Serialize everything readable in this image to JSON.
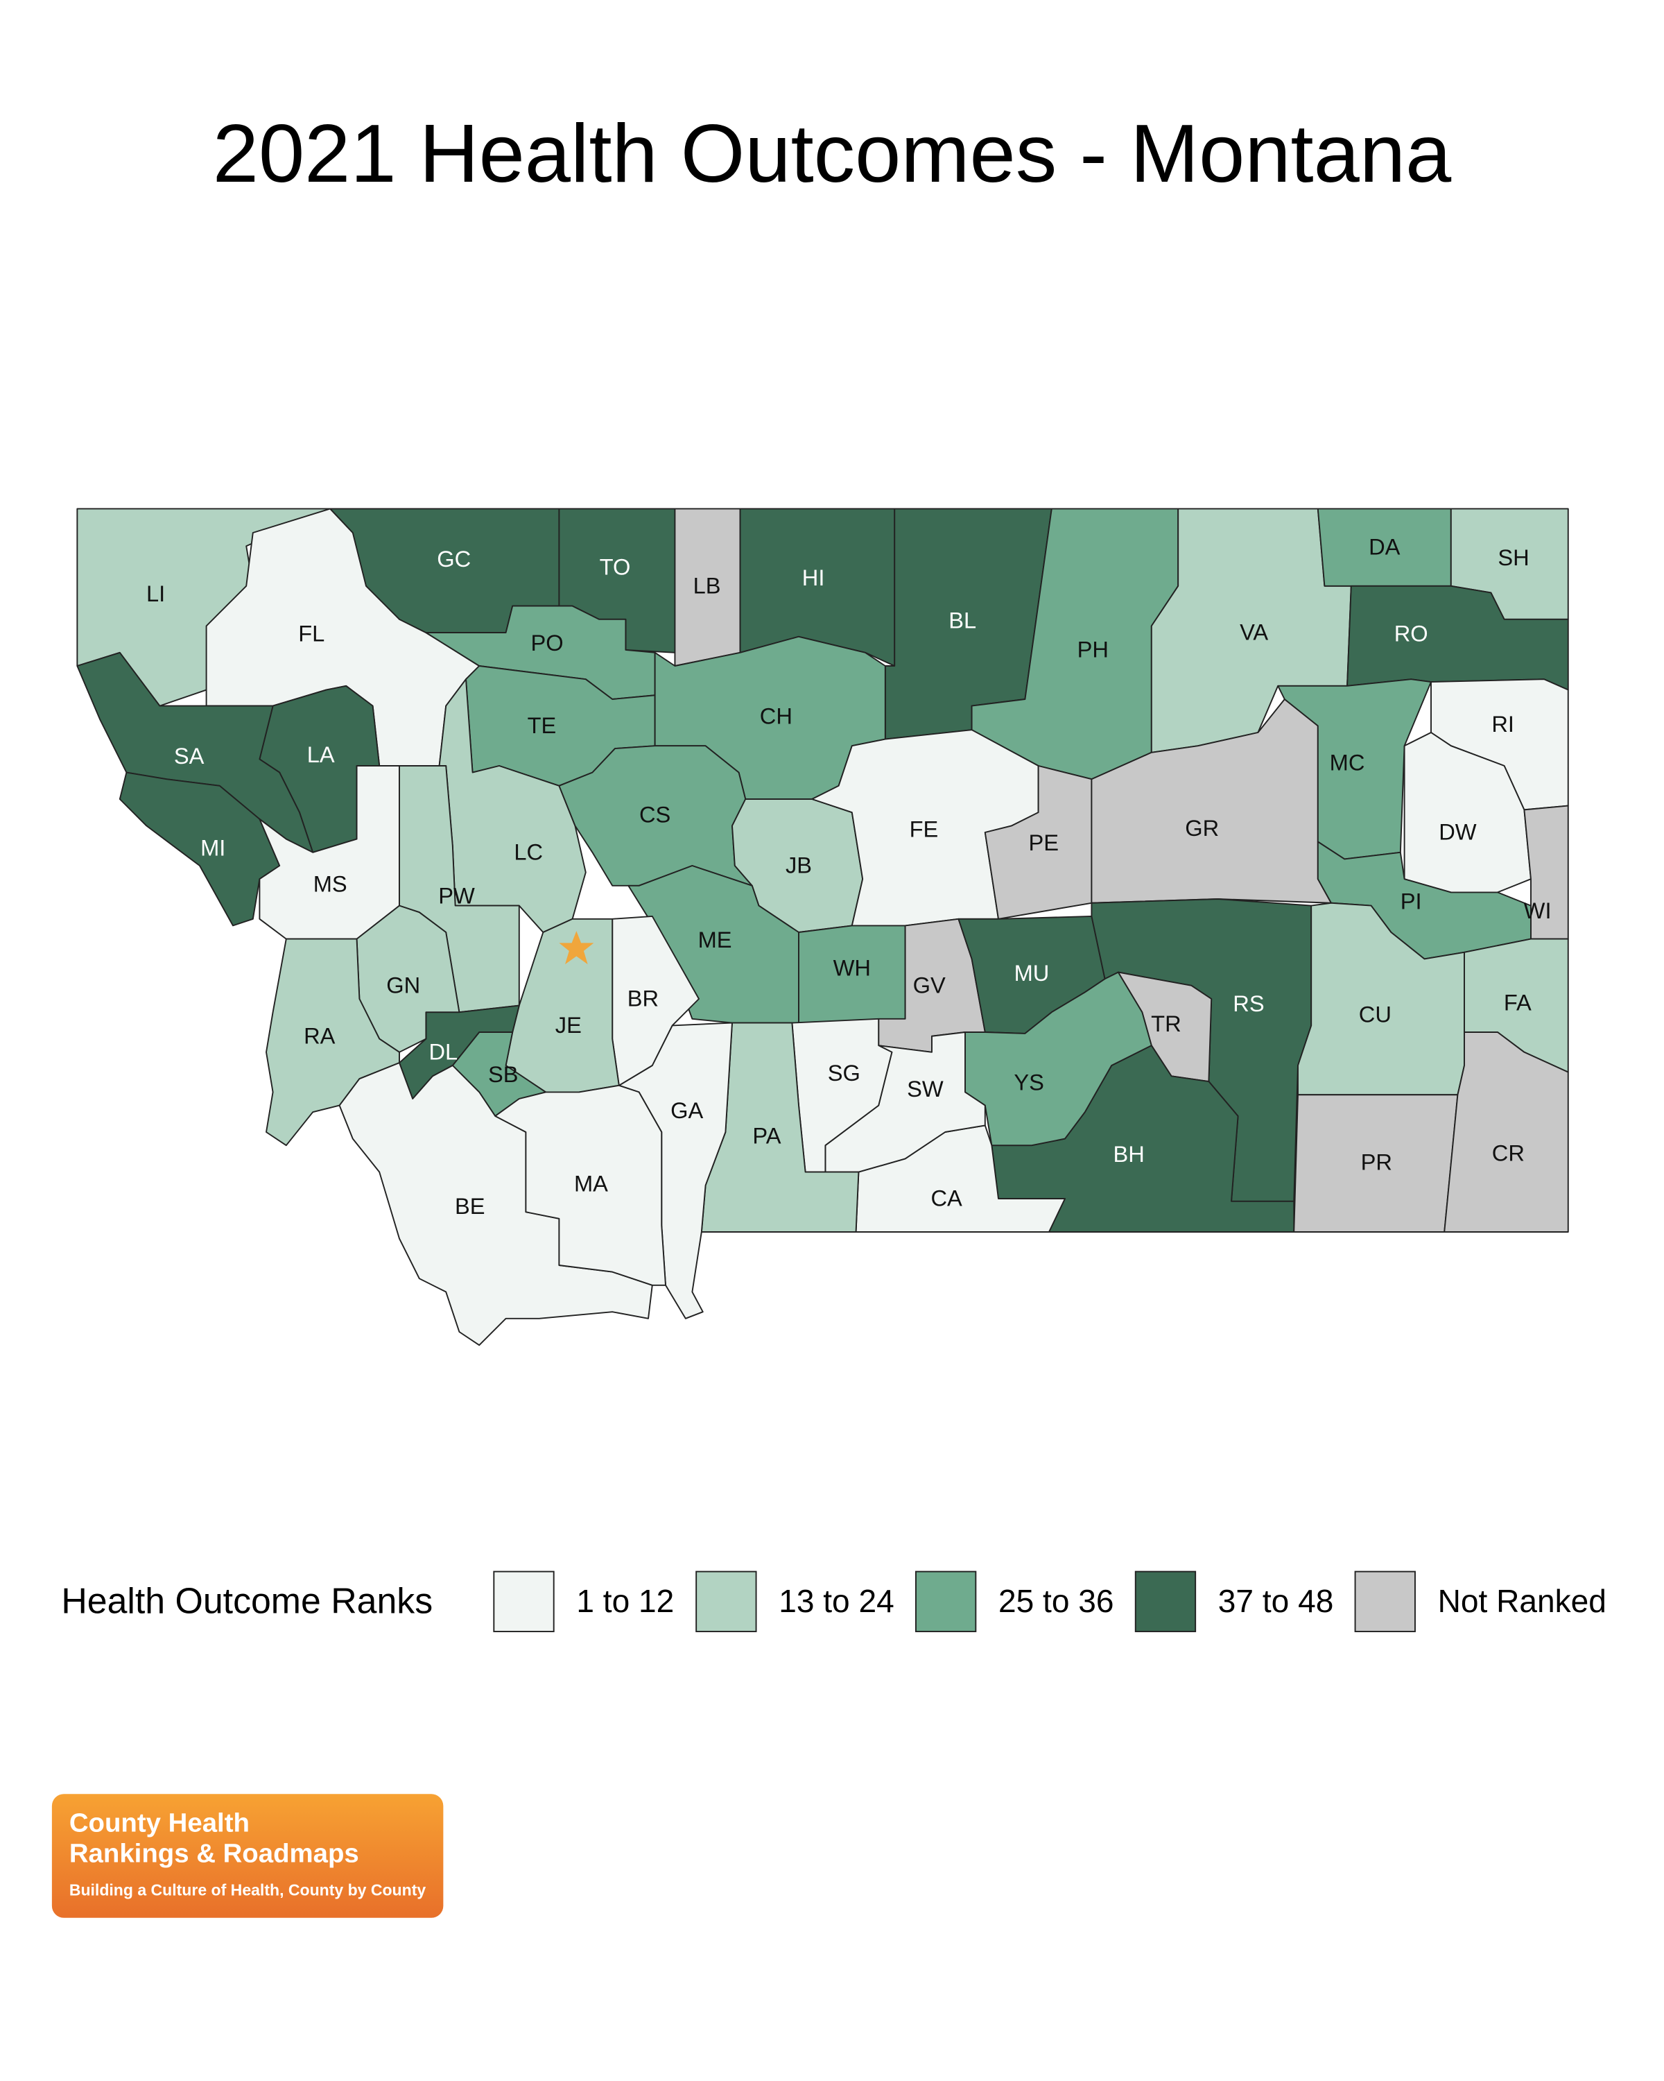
{
  "title": "2021 Health Outcomes - Montana",
  "legend": {
    "title": "Health Outcome Ranks",
    "items": [
      {
        "label": "1 to 12",
        "color": "#f1f5f3"
      },
      {
        "label": "13 to 24",
        "color": "#b2d3c2"
      },
      {
        "label": "25 to 36",
        "color": "#6fab8e"
      },
      {
        "label": "37 to 48",
        "color": "#3b6a53"
      },
      {
        "label": "Not Ranked",
        "color": "#c8c8c8"
      }
    ]
  },
  "map": {
    "counties": [
      {
        "abbr": "LI",
        "rank": "13 to 24"
      },
      {
        "abbr": "FL",
        "rank": "1 to 12"
      },
      {
        "abbr": "GC",
        "rank": "37 to 48"
      },
      {
        "abbr": "TO",
        "rank": "37 to 48"
      },
      {
        "abbr": "LB",
        "rank": "Not Ranked"
      },
      {
        "abbr": "HI",
        "rank": "37 to 48"
      },
      {
        "abbr": "BL",
        "rank": "37 to 48"
      },
      {
        "abbr": "PH",
        "rank": "25 to 36"
      },
      {
        "abbr": "VA",
        "rank": "13 to 24"
      },
      {
        "abbr": "DA",
        "rank": "25 to 36"
      },
      {
        "abbr": "SH",
        "rank": "13 to 24"
      },
      {
        "abbr": "RO",
        "rank": "37 to 48"
      },
      {
        "abbr": "PO",
        "rank": "25 to 36"
      },
      {
        "abbr": "TE",
        "rank": "25 to 36"
      },
      {
        "abbr": "CH",
        "rank": "25 to 36"
      },
      {
        "abbr": "LA",
        "rank": "37 to 48"
      },
      {
        "abbr": "SA",
        "rank": "37 to 48"
      },
      {
        "abbr": "MI",
        "rank": "37 to 48"
      },
      {
        "abbr": "MS",
        "rank": "1 to 12"
      },
      {
        "abbr": "LC",
        "rank": "13 to 24"
      },
      {
        "abbr": "PW",
        "rank": "13 to 24"
      },
      {
        "abbr": "CS",
        "rank": "25 to 36"
      },
      {
        "abbr": "JB",
        "rank": "13 to 24"
      },
      {
        "abbr": "FE",
        "rank": "1 to 12"
      },
      {
        "abbr": "PE",
        "rank": "Not Ranked"
      },
      {
        "abbr": "GR",
        "rank": "Not Ranked"
      },
      {
        "abbr": "MC",
        "rank": "25 to 36"
      },
      {
        "abbr": "RI",
        "rank": "1 to 12"
      },
      {
        "abbr": "DW",
        "rank": "1 to 12"
      },
      {
        "abbr": "WI",
        "rank": "Not Ranked"
      },
      {
        "abbr": "PI",
        "rank": "25 to 36"
      },
      {
        "abbr": "ME",
        "rank": "25 to 36"
      },
      {
        "abbr": "WH",
        "rank": "25 to 36"
      },
      {
        "abbr": "GV",
        "rank": "Not Ranked"
      },
      {
        "abbr": "MU",
        "rank": "37 to 48"
      },
      {
        "abbr": "RS",
        "rank": "37 to 48"
      },
      {
        "abbr": "TR",
        "rank": "Not Ranked"
      },
      {
        "abbr": "CU",
        "rank": "13 to 24"
      },
      {
        "abbr": "FA",
        "rank": "13 to 24"
      },
      {
        "abbr": "BH",
        "rank": "37 to 48"
      },
      {
        "abbr": "YS",
        "rank": "25 to 36"
      },
      {
        "abbr": "CA",
        "rank": "1 to 12"
      },
      {
        "abbr": "SW",
        "rank": "1 to 12"
      },
      {
        "abbr": "SG",
        "rank": "1 to 12"
      },
      {
        "abbr": "PA",
        "rank": "13 to 24"
      },
      {
        "abbr": "GA",
        "rank": "1 to 12"
      },
      {
        "abbr": "BR",
        "rank": "1 to 12"
      },
      {
        "abbr": "JE",
        "rank": "13 to 24"
      },
      {
        "abbr": "SB",
        "rank": "25 to 36"
      },
      {
        "abbr": "DL",
        "rank": "37 to 48"
      },
      {
        "abbr": "GN",
        "rank": "13 to 24"
      },
      {
        "abbr": "RA",
        "rank": "13 to 24"
      },
      {
        "abbr": "BE",
        "rank": "1 to 12"
      },
      {
        "abbr": "MA",
        "rank": "1 to 12"
      },
      {
        "abbr": "PR",
        "rank": "Not Ranked"
      },
      {
        "abbr": "CR",
        "rank": "Not Ranked"
      }
    ]
  },
  "logo": {
    "line1": "County Health",
    "line2": "Rankings & Roadmaps",
    "tagline": "Building a Culture of Health, County by County"
  }
}
